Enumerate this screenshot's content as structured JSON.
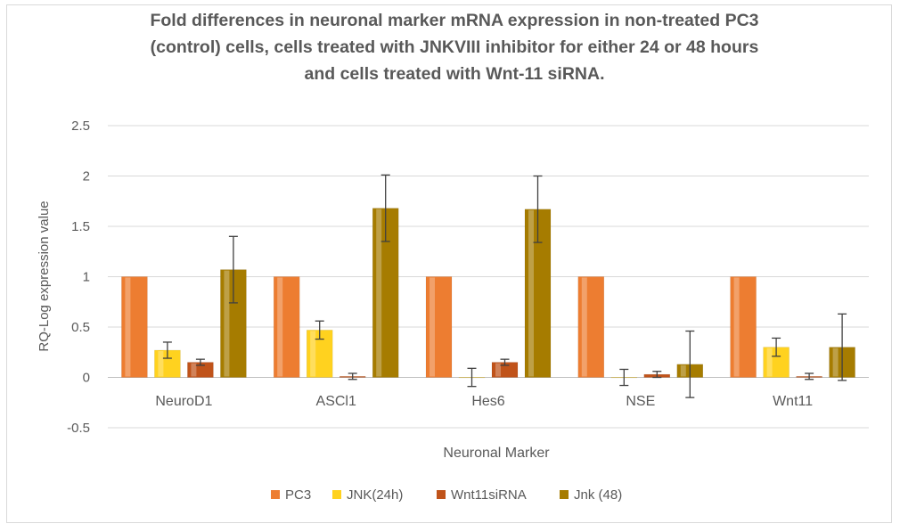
{
  "chart_data": {
    "type": "bar",
    "title_lines": [
      "Fold differences in neuronal marker mRNA expression  in non-treated PC3",
      "(control)  cells, cells treated with JNKVIII inhibitor for either 24 or 48 hours",
      "and cells treated with Wnt-11 siRNA."
    ],
    "xlabel": "Neuronal Marker",
    "ylabel": "RQ-Log expression value",
    "ylim": [
      -0.5,
      2.5
    ],
    "yticks": [
      -0.5,
      0,
      0.5,
      1,
      1.5,
      2,
      2.5
    ],
    "ytick_labels": [
      "-0.5",
      "0",
      "0.5",
      "1",
      "1.5",
      "2",
      "2.5"
    ],
    "grid": true,
    "legend_position": "bottom",
    "categories": [
      "NeuroD1",
      "ASCl1",
      "Hes6",
      "NSE",
      "Wnt11"
    ],
    "series": [
      {
        "name": "PC3",
        "color": "#ed7d31",
        "values": [
          1,
          1,
          1,
          1,
          1
        ],
        "errors": [
          0,
          0,
          0,
          0,
          0
        ]
      },
      {
        "name": "JNK(24h)",
        "color": "#ffd21f",
        "values": [
          0.27,
          0.47,
          0.0,
          0.0,
          0.3
        ],
        "errors": [
          0.08,
          0.09,
          0.09,
          0.08,
          0.09
        ]
      },
      {
        "name": "Wnt11siRNA",
        "color": "#c0531a",
        "values": [
          0.15,
          0.01,
          0.15,
          0.03,
          0.01
        ],
        "errors": [
          0.03,
          0.03,
          0.03,
          0.03,
          0.03
        ]
      },
      {
        "name": "Jnk (48)",
        "color": "#a67c00",
        "values": [
          1.07,
          1.68,
          1.67,
          0.13,
          0.3
        ],
        "errors": [
          0.33,
          0.33,
          0.33,
          0.33,
          0.33
        ]
      }
    ]
  }
}
